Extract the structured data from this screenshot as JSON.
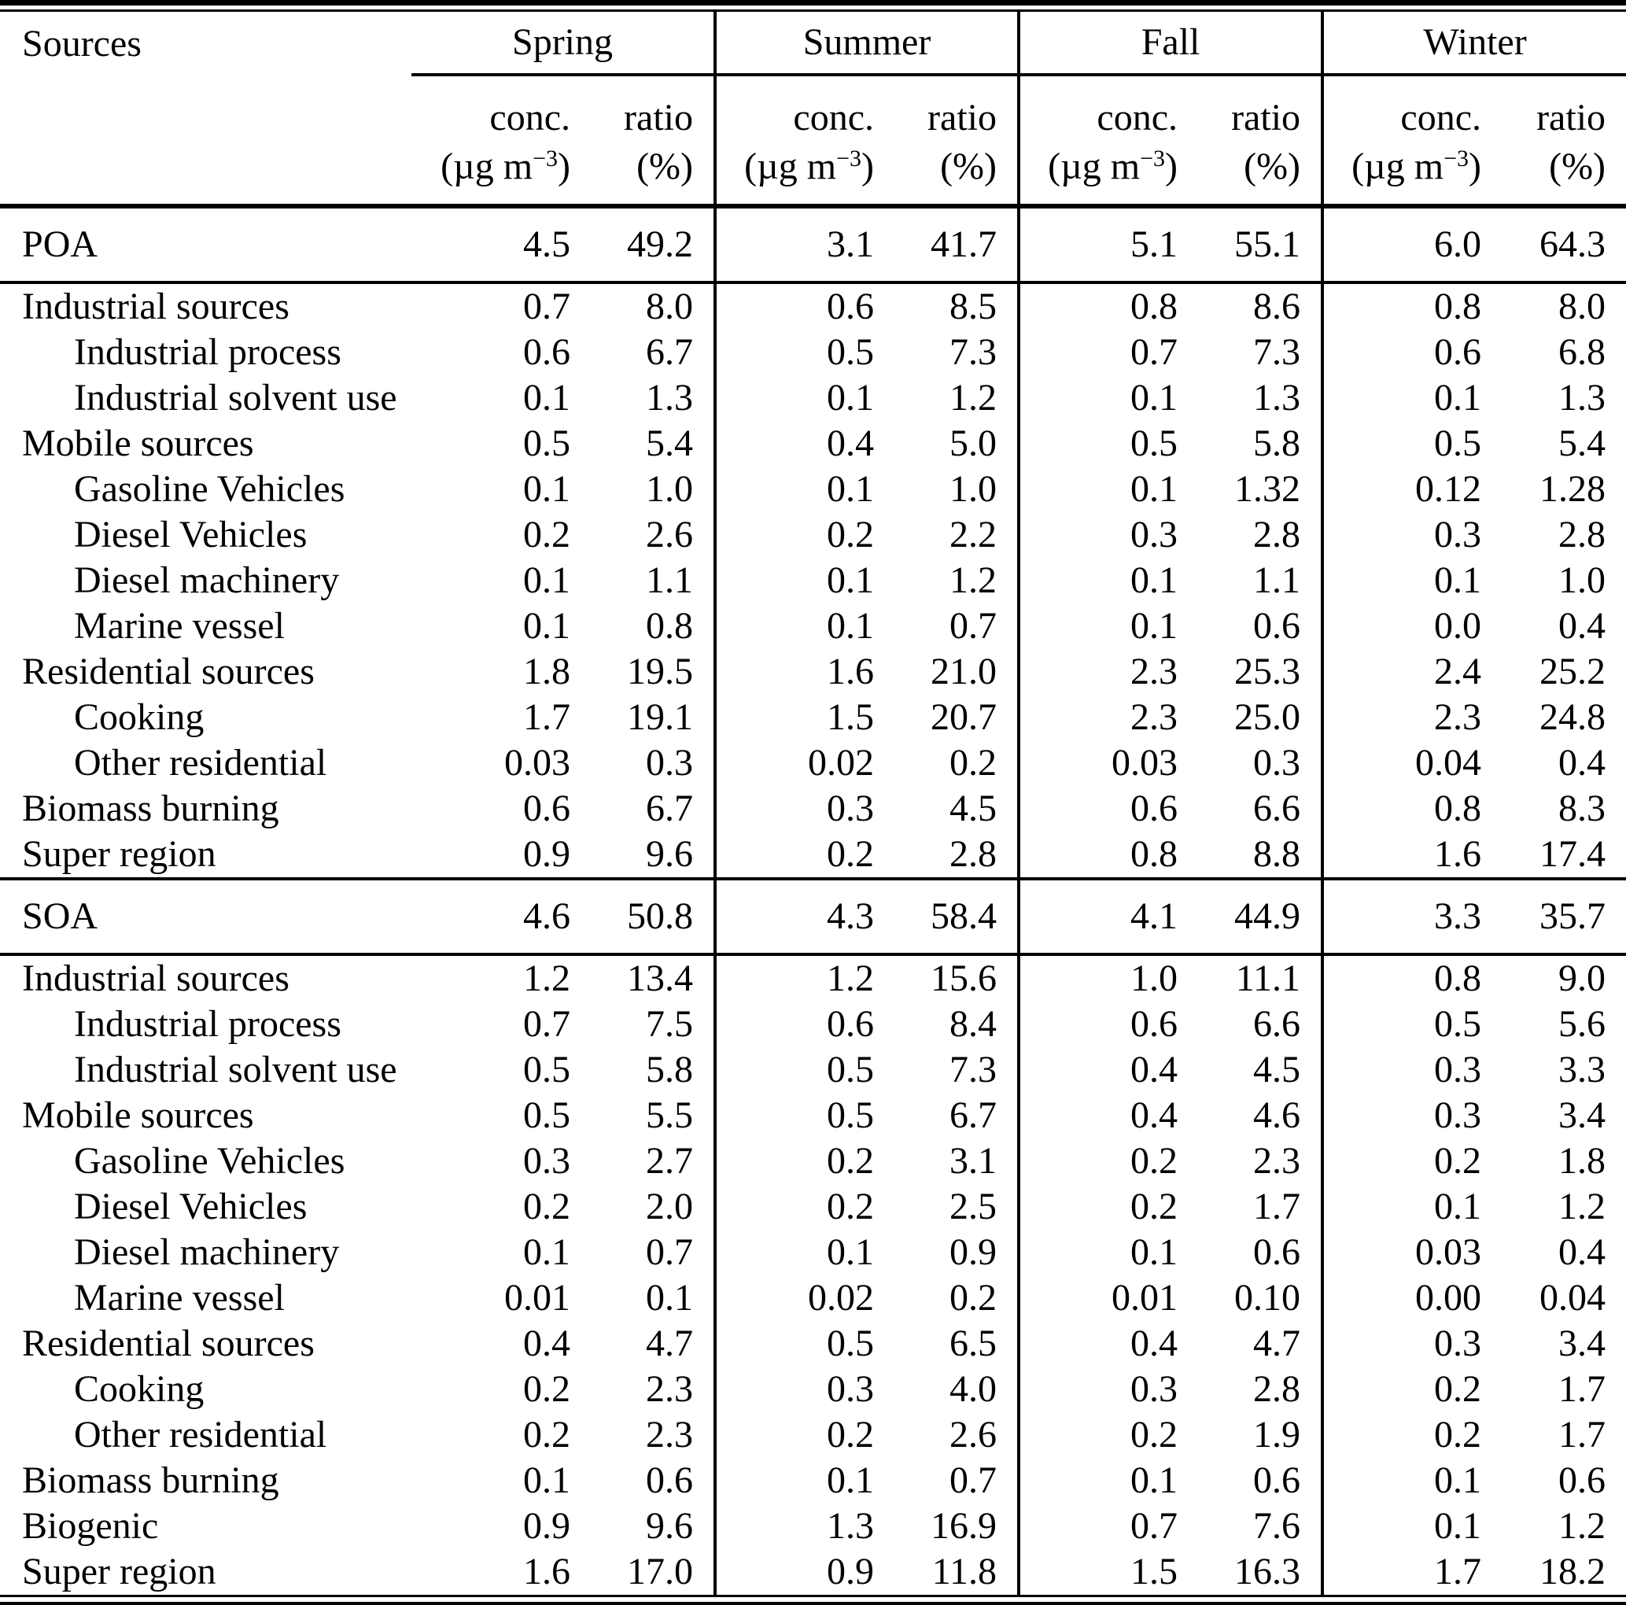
{
  "table": {
    "sources_header": "Sources",
    "seasons": [
      "Spring",
      "Summer",
      "Fall",
      "Winter"
    ],
    "subhead": {
      "conc_label": "conc.",
      "ratio_label": "ratio",
      "unit_pre": "(µg m",
      "unit_sup": "−3",
      "unit_post": ")",
      "ratio_unit": "(%)"
    },
    "sections": [
      {
        "kind": "total",
        "rows": [
          {
            "label": "POA",
            "indent": 0,
            "values": [
              "4.5",
              "49.2",
              "3.1",
              "41.7",
              "5.1",
              "55.1",
              "6.0",
              "64.3"
            ]
          }
        ]
      },
      {
        "kind": "breakdown",
        "rows": [
          {
            "label": "Industrial sources",
            "indent": 0,
            "values": [
              "0.7",
              "8.0",
              "0.6",
              "8.5",
              "0.8",
              "8.6",
              "0.8",
              "8.0"
            ]
          },
          {
            "label": "Industrial process",
            "indent": 1,
            "values": [
              "0.6",
              "6.7",
              "0.5",
              "7.3",
              "0.7",
              "7.3",
              "0.6",
              "6.8"
            ]
          },
          {
            "label": "Industrial solvent use",
            "indent": 1,
            "values": [
              "0.1",
              "1.3",
              "0.1",
              "1.2",
              "0.1",
              "1.3",
              "0.1",
              "1.3"
            ]
          },
          {
            "label": "Mobile sources",
            "indent": 0,
            "values": [
              "0.5",
              "5.4",
              "0.4",
              "5.0",
              "0.5",
              "5.8",
              "0.5",
              "5.4"
            ]
          },
          {
            "label": "Gasoline Vehicles",
            "indent": 1,
            "values": [
              "0.1",
              "1.0",
              "0.1",
              "1.0",
              "0.1",
              "1.32",
              "0.12",
              "1.28"
            ]
          },
          {
            "label": "Diesel Vehicles",
            "indent": 1,
            "values": [
              "0.2",
              "2.6",
              "0.2",
              "2.2",
              "0.3",
              "2.8",
              "0.3",
              "2.8"
            ]
          },
          {
            "label": "Diesel machinery",
            "indent": 1,
            "values": [
              "0.1",
              "1.1",
              "0.1",
              "1.2",
              "0.1",
              "1.1",
              "0.1",
              "1.0"
            ]
          },
          {
            "label": "Marine vessel",
            "indent": 1,
            "values": [
              "0.1",
              "0.8",
              "0.1",
              "0.7",
              "0.1",
              "0.6",
              "0.0",
              "0.4"
            ]
          },
          {
            "label": "Residential sources",
            "indent": 0,
            "values": [
              "1.8",
              "19.5",
              "1.6",
              "21.0",
              "2.3",
              "25.3",
              "2.4",
              "25.2"
            ]
          },
          {
            "label": "Cooking",
            "indent": 1,
            "values": [
              "1.7",
              "19.1",
              "1.5",
              "20.7",
              "2.3",
              "25.0",
              "2.3",
              "24.8"
            ]
          },
          {
            "label": "Other residential",
            "indent": 1,
            "values": [
              "0.03",
              "0.3",
              "0.02",
              "0.2",
              "0.03",
              "0.3",
              "0.04",
              "0.4"
            ]
          },
          {
            "label": "Biomass burning",
            "indent": 0,
            "values": [
              "0.6",
              "6.7",
              "0.3",
              "4.5",
              "0.6",
              "6.6",
              "0.8",
              "8.3"
            ]
          },
          {
            "label": "Super region",
            "indent": 0,
            "values": [
              "0.9",
              "9.6",
              "0.2",
              "2.8",
              "0.8",
              "8.8",
              "1.6",
              "17.4"
            ]
          }
        ]
      },
      {
        "kind": "total",
        "rows": [
          {
            "label": "SOA",
            "indent": 0,
            "values": [
              "4.6",
              "50.8",
              "4.3",
              "58.4",
              "4.1",
              "44.9",
              "3.3",
              "35.7"
            ]
          }
        ]
      },
      {
        "kind": "breakdown",
        "rows": [
          {
            "label": "Industrial sources",
            "indent": 0,
            "values": [
              "1.2",
              "13.4",
              "1.2",
              "15.6",
              "1.0",
              "11.1",
              "0.8",
              "9.0"
            ]
          },
          {
            "label": "Industrial process",
            "indent": 1,
            "values": [
              "0.7",
              "7.5",
              "0.6",
              "8.4",
              "0.6",
              "6.6",
              "0.5",
              "5.6"
            ]
          },
          {
            "label": "Industrial solvent use",
            "indent": 1,
            "values": [
              "0.5",
              "5.8",
              "0.5",
              "7.3",
              "0.4",
              "4.5",
              "0.3",
              "3.3"
            ]
          },
          {
            "label": "Mobile sources",
            "indent": 0,
            "values": [
              "0.5",
              "5.5",
              "0.5",
              "6.7",
              "0.4",
              "4.6",
              "0.3",
              "3.4"
            ]
          },
          {
            "label": "Gasoline Vehicles",
            "indent": 1,
            "values": [
              "0.3",
              "2.7",
              "0.2",
              "3.1",
              "0.2",
              "2.3",
              "0.2",
              "1.8"
            ]
          },
          {
            "label": "Diesel Vehicles",
            "indent": 1,
            "values": [
              "0.2",
              "2.0",
              "0.2",
              "2.5",
              "0.2",
              "1.7",
              "0.1",
              "1.2"
            ]
          },
          {
            "label": "Diesel machinery",
            "indent": 1,
            "values": [
              "0.1",
              "0.7",
              "0.1",
              "0.9",
              "0.1",
              "0.6",
              "0.03",
              "0.4"
            ]
          },
          {
            "label": "Marine vessel",
            "indent": 1,
            "values": [
              "0.01",
              "0.1",
              "0.02",
              "0.2",
              "0.01",
              "0.10",
              "0.00",
              "0.04"
            ]
          },
          {
            "label": "Residential sources",
            "indent": 0,
            "values": [
              "0.4",
              "4.7",
              "0.5",
              "6.5",
              "0.4",
              "4.7",
              "0.3",
              "3.4"
            ]
          },
          {
            "label": "Cooking",
            "indent": 1,
            "values": [
              "0.2",
              "2.3",
              "0.3",
              "4.0",
              "0.3",
              "2.8",
              "0.2",
              "1.7"
            ]
          },
          {
            "label": "Other residential",
            "indent": 1,
            "values": [
              "0.2",
              "2.3",
              "0.2",
              "2.6",
              "0.2",
              "1.9",
              "0.2",
              "1.7"
            ]
          },
          {
            "label": "Biomass burning",
            "indent": 0,
            "values": [
              "0.1",
              "0.6",
              "0.1",
              "0.7",
              "0.1",
              "0.6",
              "0.1",
              "0.6"
            ]
          },
          {
            "label": "Biogenic",
            "indent": 0,
            "values": [
              "0.9",
              "9.6",
              "1.3",
              "16.9",
              "0.7",
              "7.6",
              "0.1",
              "1.2"
            ]
          },
          {
            "label": "Super region",
            "indent": 0,
            "values": [
              "1.6",
              "17.0",
              "0.9",
              "11.8",
              "1.5",
              "16.3",
              "1.7",
              "18.2"
            ]
          }
        ]
      }
    ]
  }
}
